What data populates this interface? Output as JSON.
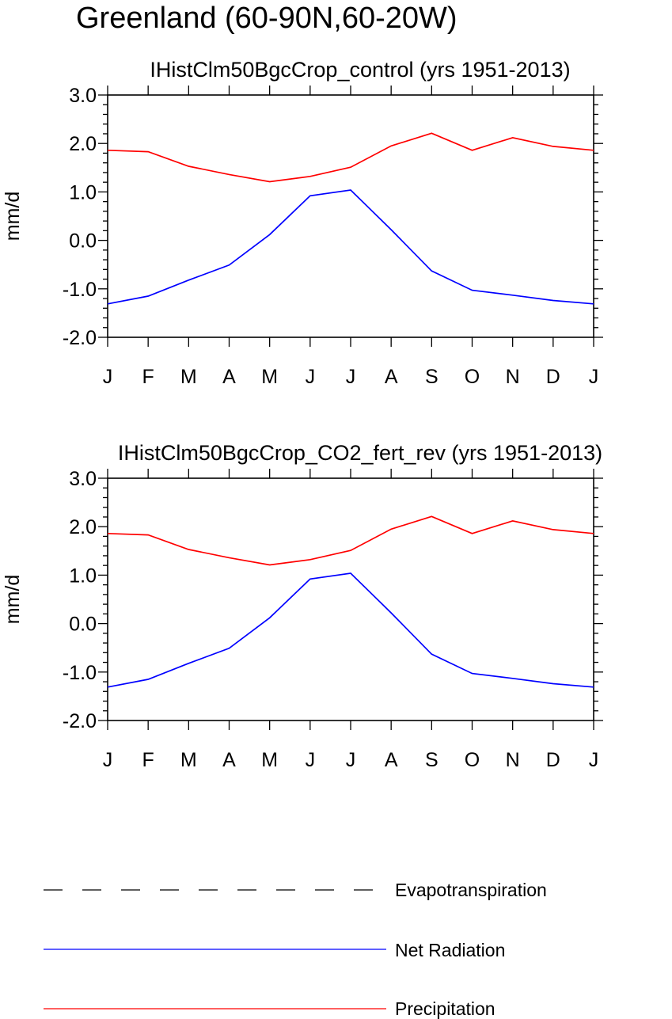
{
  "page_title": "Greenland (60-90N,60-20W)",
  "legend": [
    {
      "label": "Evapotranspiration",
      "color": "#000000",
      "style": "dashed"
    },
    {
      "label": "Net Radiation",
      "color": "#0000ff",
      "style": "solid"
    },
    {
      "label": "Precipitation",
      "color": "#ff0000",
      "style": "solid"
    }
  ],
  "chart_data": [
    {
      "type": "line",
      "title": "IHistClm50BgcCrop_control (yrs 1951-2013)",
      "xlabel": "",
      "ylabel": "mm/d",
      "ylim": [
        -2.0,
        3.0
      ],
      "yticks": [
        "3.0",
        "2.0",
        "1.0",
        "0.0",
        "-1.0",
        "-2.0"
      ],
      "categories": [
        "J",
        "F",
        "M",
        "A",
        "M",
        "J",
        "J",
        "A",
        "S",
        "O",
        "N",
        "D",
        "J"
      ],
      "series": [
        {
          "name": "Precipitation",
          "color": "#ff0000",
          "values": [
            1.86,
            1.83,
            1.53,
            1.36,
            1.21,
            1.32,
            1.51,
            1.95,
            2.21,
            1.86,
            2.12,
            1.94,
            1.86
          ]
        },
        {
          "name": "Net Radiation",
          "color": "#0000ff",
          "values": [
            -1.31,
            -1.15,
            -0.82,
            -0.51,
            0.12,
            0.92,
            1.04,
            0.22,
            -0.63,
            -1.03,
            -1.13,
            -1.24,
            -1.31
          ]
        }
      ]
    },
    {
      "type": "line",
      "title": "IHistClm50BgcCrop_CO2_fert_rev (yrs 1951-2013)",
      "xlabel": "",
      "ylabel": "mm/d",
      "ylim": [
        -2.0,
        3.0
      ],
      "yticks": [
        "3.0",
        "2.0",
        "1.0",
        "0.0",
        "-1.0",
        "-2.0"
      ],
      "categories": [
        "J",
        "F",
        "M",
        "A",
        "M",
        "J",
        "J",
        "A",
        "S",
        "O",
        "N",
        "D",
        "J"
      ],
      "series": [
        {
          "name": "Precipitation",
          "color": "#ff0000",
          "values": [
            1.86,
            1.83,
            1.53,
            1.36,
            1.21,
            1.32,
            1.51,
            1.95,
            2.21,
            1.86,
            2.12,
            1.94,
            1.86
          ]
        },
        {
          "name": "Net Radiation",
          "color": "#0000ff",
          "values": [
            -1.31,
            -1.15,
            -0.82,
            -0.51,
            0.12,
            0.92,
            1.04,
            0.22,
            -0.63,
            -1.03,
            -1.13,
            -1.24,
            -1.31
          ]
        }
      ]
    }
  ]
}
